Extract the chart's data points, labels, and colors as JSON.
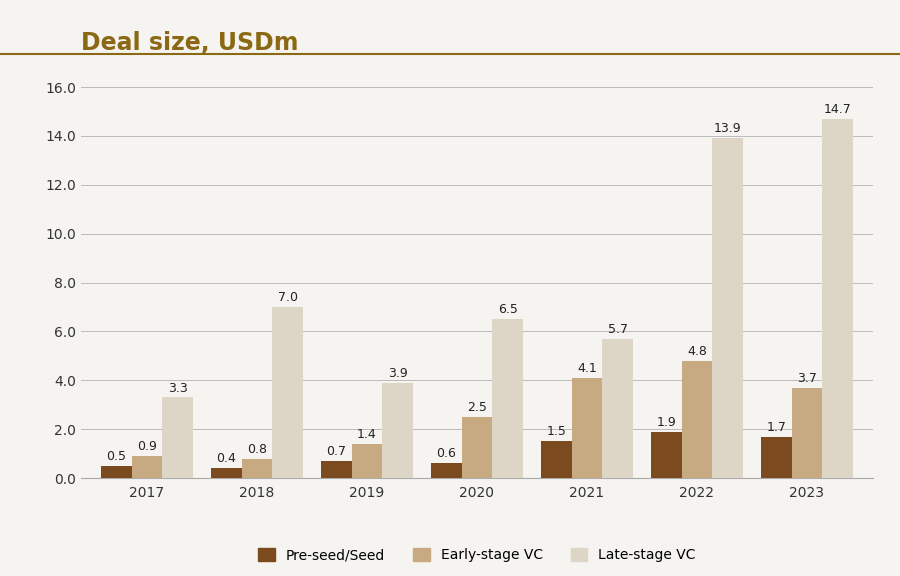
{
  "title": "Deal size, USDm",
  "title_color": "#8B6914",
  "title_fontsize": 17,
  "title_fontweight": "bold",
  "years": [
    "2017",
    "2018",
    "2019",
    "2020",
    "2021",
    "2022",
    "2023"
  ],
  "pre_seed": [
    0.5,
    0.4,
    0.7,
    0.6,
    1.5,
    1.9,
    1.7
  ],
  "early_vc": [
    0.9,
    0.8,
    1.4,
    2.5,
    4.1,
    4.8,
    3.7
  ],
  "late_vc": [
    3.3,
    7.0,
    3.9,
    6.5,
    5.7,
    13.9,
    14.7
  ],
  "pre_seed_color": "#7B4A1E",
  "early_vc_color": "#C8AA82",
  "late_vc_color": "#DDD5C5",
  "ylim": [
    0,
    16.5
  ],
  "yticks": [
    0.0,
    2.0,
    4.0,
    6.0,
    8.0,
    10.0,
    12.0,
    14.0,
    16.0
  ],
  "bar_width": 0.28,
  "background_color": "#F5F4F0",
  "plot_bg_color": "#F5F4F0",
  "grid_color": "#BBBBBB",
  "legend_labels": [
    "Pre-seed/Seed",
    "Early-stage VC",
    "Late-stage VC"
  ],
  "title_line_color": "#8B6914",
  "label_fontsize": 9,
  "axis_fontsize": 10,
  "label_color": "#222222"
}
